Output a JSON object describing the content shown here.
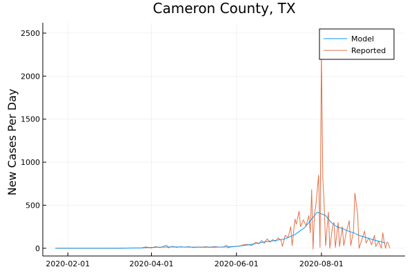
{
  "chart_data": {
    "type": "line",
    "title": "Cameron County, TX",
    "xlabel": "",
    "ylabel": "New Cases Per Day",
    "x_ticks": [
      "2020-02-01",
      "2020-04-01",
      "2020-06-01",
      "2020-08-01"
    ],
    "y_ticks": [
      0,
      500,
      1000,
      1500,
      2000,
      2500
    ],
    "xlim": [
      "2020-01-14",
      "2020-09-30"
    ],
    "ylim": [
      -90,
      2620
    ],
    "grid": true,
    "legend_position": "top-right",
    "series": [
      {
        "name": "Model",
        "color": "#009AFA",
        "points": [
          [
            "2020-01-23",
            0
          ],
          [
            "2020-02-15",
            0
          ],
          [
            "2020-03-10",
            1
          ],
          [
            "2020-03-25",
            5
          ],
          [
            "2020-04-05",
            12
          ],
          [
            "2020-04-15",
            15
          ],
          [
            "2020-04-25",
            14
          ],
          [
            "2020-05-05",
            12
          ],
          [
            "2020-05-15",
            12
          ],
          [
            "2020-05-25",
            15
          ],
          [
            "2020-06-01",
            22
          ],
          [
            "2020-06-08",
            35
          ],
          [
            "2020-06-15",
            55
          ],
          [
            "2020-06-22",
            75
          ],
          [
            "2020-06-29",
            90
          ],
          [
            "2020-07-06",
            110
          ],
          [
            "2020-07-13",
            160
          ],
          [
            "2020-07-20",
            240
          ],
          [
            "2020-07-26",
            360
          ],
          [
            "2020-07-29",
            420
          ],
          [
            "2020-08-01",
            400
          ],
          [
            "2020-08-04",
            380
          ],
          [
            "2020-08-08",
            300
          ],
          [
            "2020-08-12",
            250
          ],
          [
            "2020-08-16",
            230
          ],
          [
            "2020-08-20",
            200
          ],
          [
            "2020-08-24",
            180
          ],
          [
            "2020-08-28",
            150
          ],
          [
            "2020-09-01",
            130
          ],
          [
            "2020-09-05",
            110
          ],
          [
            "2020-09-09",
            90
          ],
          [
            "2020-09-13",
            75
          ],
          [
            "2020-09-16",
            60
          ]
        ]
      },
      {
        "name": "Reported",
        "color": "#E26F46",
        "points": [
          [
            "2020-01-23",
            0
          ],
          [
            "2020-03-01",
            0
          ],
          [
            "2020-03-15",
            2
          ],
          [
            "2020-03-25",
            5
          ],
          [
            "2020-03-28",
            15
          ],
          [
            "2020-04-01",
            3
          ],
          [
            "2020-04-04",
            20
          ],
          [
            "2020-04-07",
            8
          ],
          [
            "2020-04-10",
            25
          ],
          [
            "2020-04-12",
            35
          ],
          [
            "2020-04-13",
            5
          ],
          [
            "2020-04-16",
            22
          ],
          [
            "2020-04-19",
            10
          ],
          [
            "2020-04-22",
            18
          ],
          [
            "2020-04-25",
            12
          ],
          [
            "2020-04-28",
            20
          ],
          [
            "2020-05-01",
            8
          ],
          [
            "2020-05-04",
            15
          ],
          [
            "2020-05-07",
            12
          ],
          [
            "2020-05-10",
            18
          ],
          [
            "2020-05-13",
            10
          ],
          [
            "2020-05-16",
            20
          ],
          [
            "2020-05-19",
            15
          ],
          [
            "2020-05-22",
            12
          ],
          [
            "2020-05-25",
            35
          ],
          [
            "2020-05-26",
            5
          ],
          [
            "2020-05-28",
            15
          ],
          [
            "2020-05-31",
            20
          ],
          [
            "2020-06-03",
            25
          ],
          [
            "2020-06-06",
            40
          ],
          [
            "2020-06-09",
            45
          ],
          [
            "2020-06-12",
            30
          ],
          [
            "2020-06-15",
            70
          ],
          [
            "2020-06-17",
            50
          ],
          [
            "2020-06-19",
            90
          ],
          [
            "2020-06-21",
            60
          ],
          [
            "2020-06-23",
            110
          ],
          [
            "2020-06-25",
            70
          ],
          [
            "2020-06-27",
            100
          ],
          [
            "2020-06-29",
            80
          ],
          [
            "2020-07-01",
            120
          ],
          [
            "2020-07-03",
            90
          ],
          [
            "2020-07-04",
            20
          ],
          [
            "2020-07-06",
            150
          ],
          [
            "2020-07-08",
            120
          ],
          [
            "2020-07-10",
            250
          ],
          [
            "2020-07-11",
            30
          ],
          [
            "2020-07-13",
            340
          ],
          [
            "2020-07-14",
            280
          ],
          [
            "2020-07-16",
            430
          ],
          [
            "2020-07-17",
            250
          ],
          [
            "2020-07-19",
            330
          ],
          [
            "2020-07-21",
            260
          ],
          [
            "2020-07-23",
            380
          ],
          [
            "2020-07-24",
            180
          ],
          [
            "2020-07-25",
            680
          ],
          [
            "2020-07-26",
            -10
          ],
          [
            "2020-07-27",
            400
          ],
          [
            "2020-07-28",
            500
          ],
          [
            "2020-07-30",
            850
          ],
          [
            "2020-07-31",
            10
          ],
          [
            "2020-08-01",
            2260
          ],
          [
            "2020-08-02",
            800
          ],
          [
            "2020-08-03",
            500
          ],
          [
            "2020-08-04",
            30
          ],
          [
            "2020-08-06",
            420
          ],
          [
            "2020-08-07",
            0
          ],
          [
            "2020-08-09",
            260
          ],
          [
            "2020-08-10",
            300
          ],
          [
            "2020-08-11",
            10
          ],
          [
            "2020-08-13",
            300
          ],
          [
            "2020-08-14",
            20
          ],
          [
            "2020-08-16",
            250
          ],
          [
            "2020-08-17",
            30
          ],
          [
            "2020-08-19",
            200
          ],
          [
            "2020-08-21",
            320
          ],
          [
            "2020-08-22",
            30
          ],
          [
            "2020-08-24",
            200
          ],
          [
            "2020-08-25",
            640
          ],
          [
            "2020-08-27",
            400
          ],
          [
            "2020-08-28",
            0
          ],
          [
            "2020-08-30",
            100
          ],
          [
            "2020-09-01",
            200
          ],
          [
            "2020-09-02",
            60
          ],
          [
            "2020-09-04",
            120
          ],
          [
            "2020-09-06",
            40
          ],
          [
            "2020-09-08",
            150
          ],
          [
            "2020-09-09",
            20
          ],
          [
            "2020-09-11",
            80
          ],
          [
            "2020-09-13",
            0
          ],
          [
            "2020-09-14",
            180
          ],
          [
            "2020-09-15",
            80
          ],
          [
            "2020-09-16",
            0
          ],
          [
            "2020-09-17",
            70
          ],
          [
            "2020-09-18",
            60
          ],
          [
            "2020-09-19",
            0
          ]
        ]
      }
    ]
  }
}
